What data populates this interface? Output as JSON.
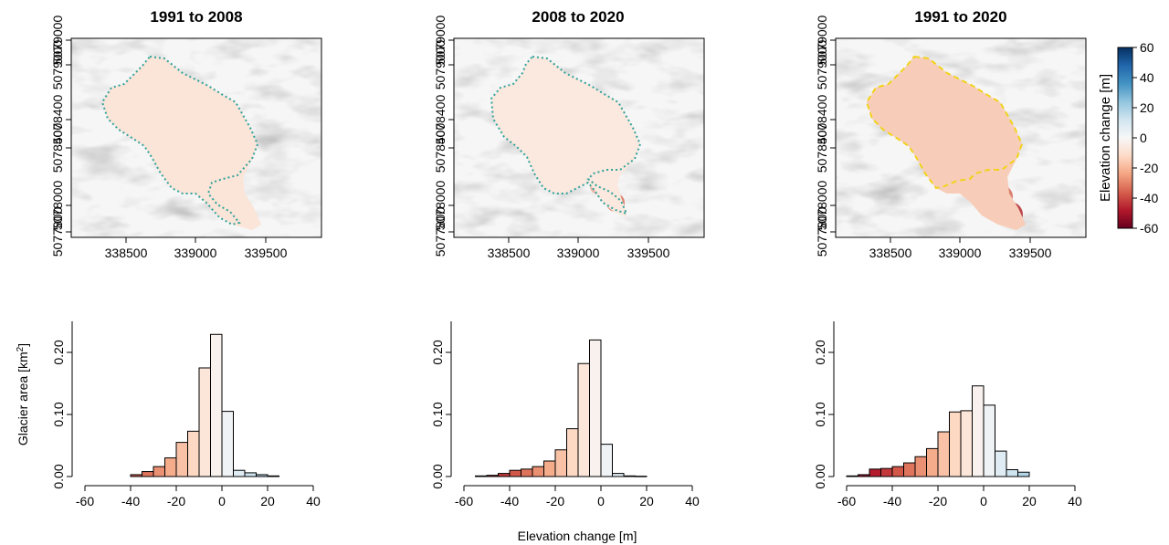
{
  "chart_data": [
    {
      "type": "heatmap",
      "title": "1991 to 2008",
      "x_ticks": [
        "338500",
        "339000",
        "339500"
      ],
      "y_ticks": [
        "5077800",
        "5078000",
        "5078400",
        "5078400",
        "5079000",
        "5079000"
      ],
      "outline_colors": [
        "#3a1a5a",
        "#2ea39a"
      ]
    },
    {
      "type": "heatmap",
      "title": "2008 to 2020",
      "x_ticks": [
        "338500",
        "339000",
        "339500"
      ],
      "y_ticks": [
        "5077800",
        "5078000",
        "5078400",
        "5078400",
        "5079000",
        "5079000"
      ],
      "outline_colors": [
        "#f2d21a",
        "#2ea39a"
      ]
    },
    {
      "type": "heatmap",
      "title": "1991 to 2020",
      "x_ticks": [
        "338500",
        "339000",
        "339500"
      ],
      "y_ticks": [
        "5077800",
        "5078000",
        "5078400",
        "5078400",
        "5079000",
        "5079000"
      ],
      "outline_colors": [
        "#3a1a5a",
        "#f2d21a"
      ],
      "colorbar": {
        "label": "Elevation change [m]",
        "ticks": [
          "60",
          "40",
          "20",
          "0",
          "-20",
          "-40",
          "-60"
        ],
        "range": [
          -60,
          60
        ],
        "colors": [
          "#67001f",
          "#b2182b",
          "#d6604d",
          "#f4a582",
          "#fddbc7",
          "#f7f7f7",
          "#d1e5f0",
          "#92c5de",
          "#4393c3",
          "#2166ac",
          "#053061"
        ]
      }
    },
    {
      "type": "bar",
      "ylabel": "Glacier area  [km",
      "ylabel_sup": "2",
      "ylabel_end": "]",
      "bin_width": 5,
      "bins": [
        -40,
        -35,
        -30,
        -25,
        -20,
        -15,
        -10,
        -5,
        0,
        5,
        10,
        15,
        20
      ],
      "values": [
        0.003,
        0.008,
        0.016,
        0.03,
        0.055,
        0.073,
        0.175,
        0.229,
        0.105,
        0.01,
        0.006,
        0.003,
        0.001
      ],
      "xlim": [
        -60,
        40
      ],
      "ylim": [
        0,
        0.25
      ],
      "x_ticks": [
        "-60",
        "-40",
        "-20",
        "0",
        "20",
        "40"
      ],
      "y_ticks": [
        "0.00",
        "0.10",
        "0.20"
      ]
    },
    {
      "type": "bar",
      "xlabel": "Elevation change [m]",
      "bin_width": 5,
      "bins": [
        -55,
        -50,
        -45,
        -40,
        -35,
        -30,
        -25,
        -20,
        -15,
        -10,
        -5,
        0,
        5,
        10,
        15
      ],
      "values": [
        0.001,
        0.002,
        0.005,
        0.01,
        0.012,
        0.016,
        0.025,
        0.043,
        0.077,
        0.182,
        0.22,
        0.052,
        0.005,
        0.001,
        0.0005
      ],
      "xlim": [
        -60,
        40
      ],
      "ylim": [
        0,
        0.25
      ],
      "x_ticks": [
        "-60",
        "-40",
        "-20",
        "0",
        "20",
        "40"
      ],
      "y_ticks": [
        "0.00",
        "0.10",
        "0.20"
      ]
    },
    {
      "type": "bar",
      "bin_width": 5,
      "bins": [
        -60,
        -55,
        -50,
        -45,
        -40,
        -35,
        -30,
        -25,
        -20,
        -15,
        -10,
        -5,
        0,
        5,
        10,
        15
      ],
      "values": [
        0.001,
        0.003,
        0.012,
        0.013,
        0.016,
        0.022,
        0.032,
        0.045,
        0.072,
        0.104,
        0.106,
        0.146,
        0.115,
        0.041,
        0.011,
        0.007
      ],
      "xlim": [
        -60,
        40
      ],
      "ylim": [
        0,
        0.25
      ],
      "x_ticks": [
        "-60",
        "-40",
        "-20",
        "0",
        "20",
        "40"
      ],
      "y_ticks": [
        "0.00",
        "0.10",
        "0.20"
      ]
    }
  ]
}
